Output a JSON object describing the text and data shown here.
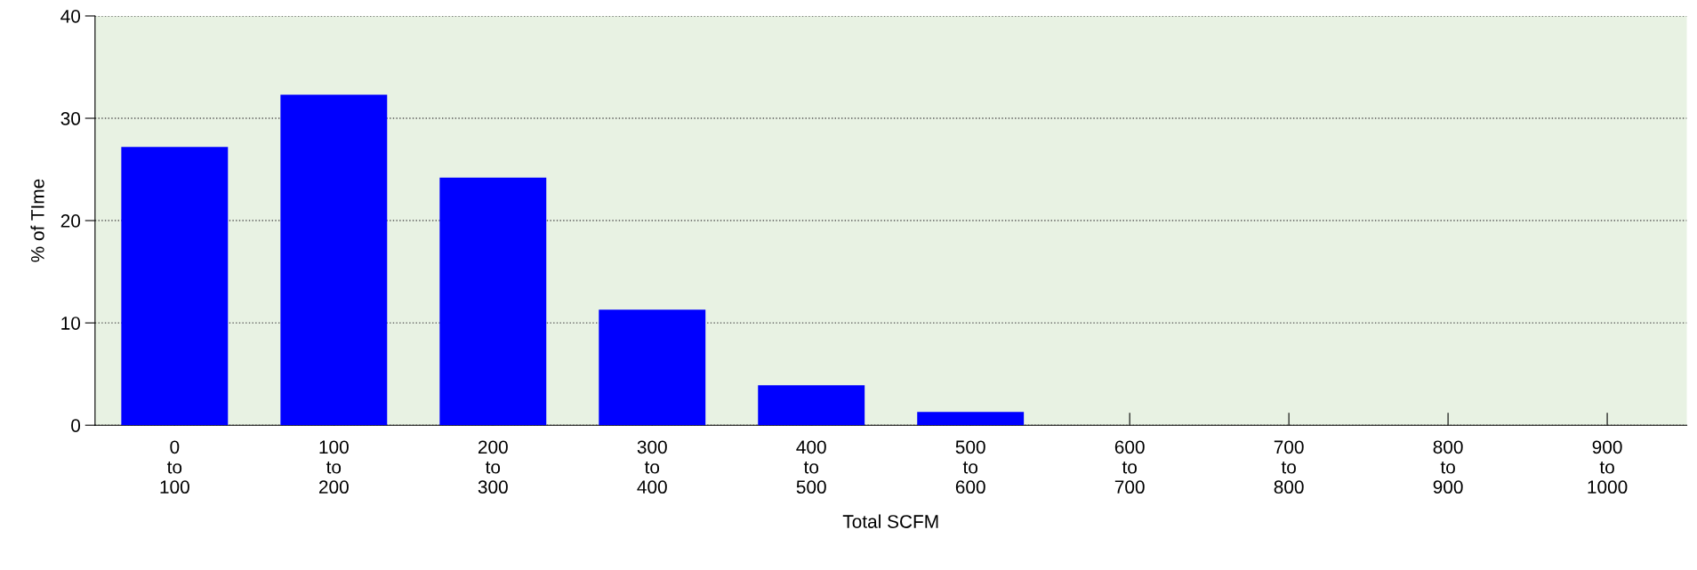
{
  "chart_data": {
    "type": "bar",
    "xlabel": "Total SCFM",
    "ylabel": "% of TIme",
    "categories": [
      "0\nto\n100",
      "100\nto\n200",
      "200\nto\n300",
      "300\nto\n400",
      "400\nto\n500",
      "500\nto\n600",
      "600\nto\n700",
      "700\nto\n800",
      "800\nto\n900",
      "900\nto\n1000"
    ],
    "values": [
      27.2,
      32.3,
      24.2,
      11.3,
      3.9,
      1.3,
      0,
      0,
      0,
      0
    ],
    "color": "#0000ff",
    "ylim": [
      0,
      40
    ],
    "yticks": [
      0,
      10,
      20,
      30,
      40
    ],
    "grid": "y"
  }
}
